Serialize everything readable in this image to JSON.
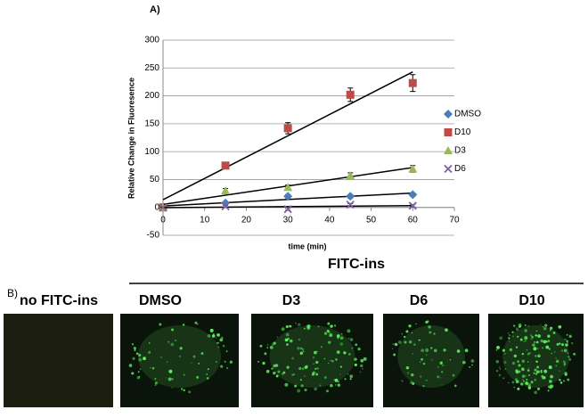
{
  "chart_data": {
    "type": "scatter",
    "title": "A)",
    "x_label": "time (min)",
    "y_label": "Relative Change in Fluoresence",
    "x": [
      0,
      15,
      30,
      45,
      60
    ],
    "series": [
      {
        "name": "DMSO",
        "color": "#4a7ebb",
        "marker": "diamond",
        "values": [
          0,
          8,
          20,
          20,
          23
        ],
        "errors": [
          0,
          2,
          3,
          3,
          3
        ]
      },
      {
        "name": "D10",
        "color": "#be4b48",
        "marker": "square",
        "values": [
          0,
          75,
          142,
          202,
          223
        ],
        "errors": [
          0,
          6,
          10,
          12,
          15
        ]
      },
      {
        "name": "D3",
        "color": "#98b954",
        "marker": "triangle",
        "values": [
          0,
          30,
          36,
          57,
          69
        ],
        "errors": [
          0,
          4,
          4,
          5,
          6
        ]
      },
      {
        "name": "D6",
        "color": "#7d60a0",
        "marker": "x",
        "values": [
          0,
          2,
          -3,
          5,
          3
        ],
        "errors": [
          0,
          2,
          2,
          2,
          2
        ]
      }
    ],
    "trendline": "linear",
    "xlim": [
      0,
      70
    ],
    "xticks": [
      0,
      10,
      20,
      30,
      40,
      50,
      60,
      70
    ],
    "ylim": [
      -50,
      300
    ],
    "yticks": [
      -50,
      0,
      50,
      100,
      150,
      200,
      250,
      300
    ],
    "grid": true,
    "legend": "right"
  },
  "panel_b": {
    "label": "B)",
    "title": "FITC-ins",
    "panels": [
      "no FITC-ins",
      "DMSO",
      "D3",
      "D6",
      "D10"
    ]
  }
}
